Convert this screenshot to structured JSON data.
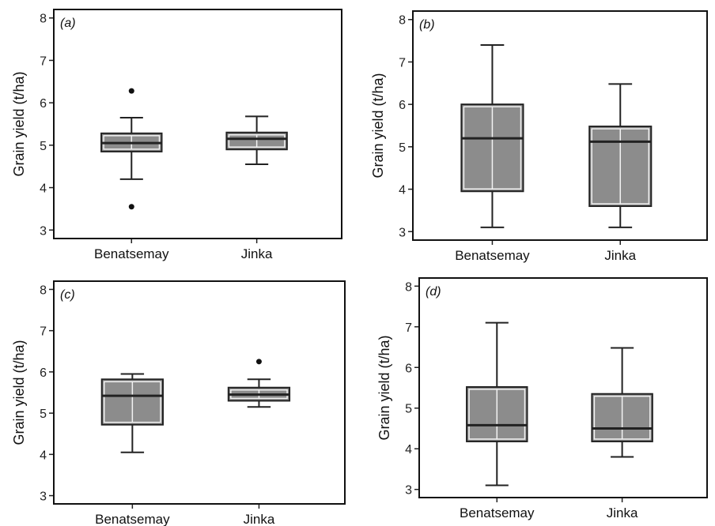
{
  "chart_data": [
    {
      "type": "box",
      "panel_label": "(a)",
      "ylabel": "Grain yield (t/ha)",
      "ylim": [
        2.8,
        8.2
      ],
      "yticks": [
        3,
        4,
        5,
        6,
        7,
        8
      ],
      "categories": [
        "Benatsemay",
        "Jinka"
      ],
      "boxes": [
        {
          "category": "Benatsemay",
          "whisker_low": 4.2,
          "q1": 4.85,
          "median": 5.05,
          "q3": 5.28,
          "whisker_high": 5.65,
          "outliers": [
            3.55,
            6.28
          ]
        },
        {
          "category": "Jinka",
          "whisker_low": 4.55,
          "q1": 4.9,
          "median": 5.15,
          "q3": 5.3,
          "whisker_high": 5.68,
          "outliers": []
        }
      ]
    },
    {
      "type": "box",
      "panel_label": "(b)",
      "ylabel": "Grain yield (t/ha)",
      "ylim": [
        2.8,
        8.2
      ],
      "yticks": [
        3,
        4,
        5,
        6,
        7,
        8
      ],
      "categories": [
        "Benatsemay",
        "Jinka"
      ],
      "boxes": [
        {
          "category": "Benatsemay",
          "whisker_low": 3.1,
          "q1": 3.95,
          "median": 5.2,
          "q3": 6.0,
          "whisker_high": 7.4,
          "outliers": []
        },
        {
          "category": "Jinka",
          "whisker_low": 3.1,
          "q1": 3.6,
          "median": 5.12,
          "q3": 5.48,
          "whisker_high": 6.48,
          "outliers": []
        }
      ]
    },
    {
      "type": "box",
      "panel_label": "(c)",
      "ylabel": "Grain yield (t/ha)",
      "ylim": [
        2.8,
        8.2
      ],
      "yticks": [
        3,
        4,
        5,
        6,
        7,
        8
      ],
      "categories": [
        "Benatsemay",
        "Jinka"
      ],
      "boxes": [
        {
          "category": "Benatsemay",
          "whisker_low": 4.05,
          "q1": 4.72,
          "median": 5.42,
          "q3": 5.82,
          "whisker_high": 5.95,
          "outliers": []
        },
        {
          "category": "Jinka",
          "whisker_low": 5.15,
          "q1": 5.3,
          "median": 5.45,
          "q3": 5.62,
          "whisker_high": 5.82,
          "outliers": [
            6.25
          ]
        }
      ]
    },
    {
      "type": "box",
      "panel_label": "(d)",
      "ylabel": "Grain yield (t/ha)",
      "ylim": [
        2.8,
        8.2
      ],
      "yticks": [
        3,
        4,
        5,
        6,
        7,
        8
      ],
      "categories": [
        "Benatsemay",
        "Jinka"
      ],
      "boxes": [
        {
          "category": "Benatsemay",
          "whisker_low": 3.1,
          "q1": 4.18,
          "median": 4.58,
          "q3": 5.52,
          "whisker_high": 7.1,
          "outliers": []
        },
        {
          "category": "Jinka",
          "whisker_low": 3.8,
          "q1": 4.18,
          "median": 4.5,
          "q3": 5.35,
          "whisker_high": 6.48,
          "outliers": []
        }
      ]
    }
  ],
  "colors": {
    "box_fill": "#8c8c8c",
    "inner_outline": "#f2f2f2",
    "stroke": "#222222"
  }
}
